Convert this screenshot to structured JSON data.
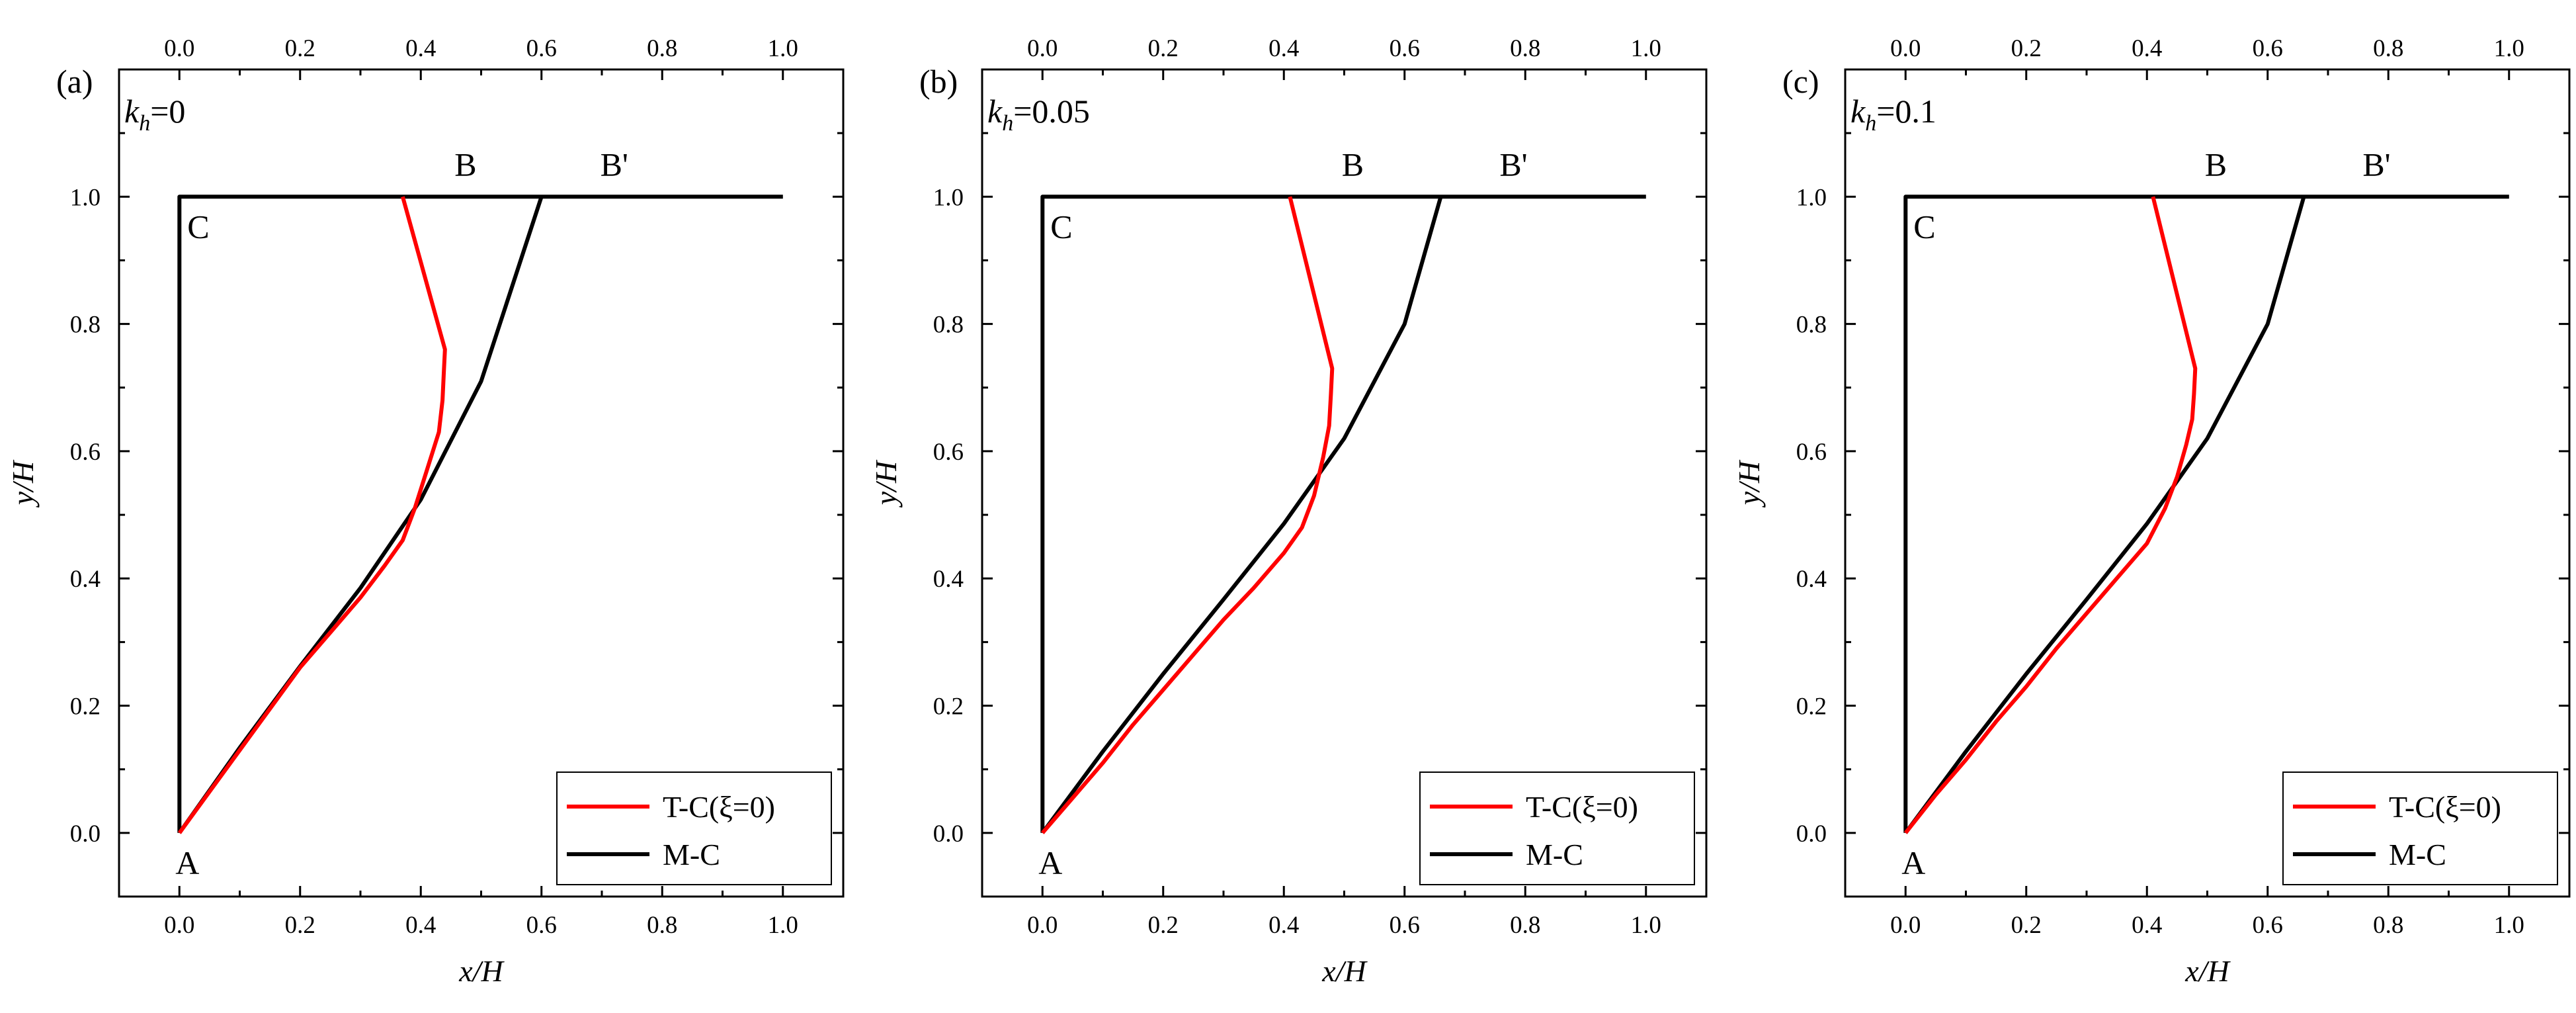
{
  "chart_data": [
    {
      "type": "line",
      "panel_label": "(a)",
      "kh_symbol": "k",
      "kh_subscript": "h",
      "kh_value": "=0",
      "xlabel": "x/H",
      "ylabel": "y/H",
      "xlim": [
        -0.1,
        1.1
      ],
      "ylim": [
        -0.1,
        1.2
      ],
      "xticks": [
        0.0,
        0.2,
        0.4,
        0.6,
        0.8,
        1.0
      ],
      "yticks": [
        0.0,
        0.2,
        0.4,
        0.6,
        0.8,
        1.0
      ],
      "xtick_labels": [
        "0.0",
        "0.2",
        "0.4",
        "0.6",
        "0.8",
        "1.0"
      ],
      "ytick_labels": [
        "0.0",
        "0.2",
        "0.4",
        "0.6",
        "0.8",
        "1.0"
      ],
      "point_labels": [
        {
          "text": "A",
          "x": 0.0,
          "y": 0.0
        },
        {
          "text": "C",
          "x": 0.0,
          "y": 1.0
        },
        {
          "text": "B",
          "x": 0.37,
          "y": 1.0
        },
        {
          "text": "B'",
          "x": 0.6,
          "y": 1.0
        }
      ],
      "legend": [
        "T-C(ξ=0)",
        "M-C"
      ],
      "series": [
        {
          "name": "T-C(ξ=0)",
          "color": "#ff0000",
          "x": [
            0.0,
            0.05,
            0.1,
            0.15,
            0.2,
            0.25,
            0.3,
            0.34,
            0.37,
            0.39,
            0.41,
            0.43,
            0.436,
            0.438,
            0.44,
            0.37
          ],
          "y": [
            0.0,
            0.065,
            0.13,
            0.195,
            0.26,
            0.315,
            0.37,
            0.42,
            0.46,
            0.51,
            0.57,
            0.63,
            0.68,
            0.72,
            0.76,
            1.0
          ]
        },
        {
          "name": "M-C",
          "color": "#000000",
          "x": [
            0.0,
            0.1,
            0.2,
            0.3,
            0.4,
            0.5,
            0.6
          ],
          "y": [
            0.0,
            0.134,
            0.262,
            0.385,
            0.524,
            0.71,
            1.0
          ]
        },
        {
          "name": "boundary",
          "color": "#000000",
          "x": [
            1.0,
            0.0,
            0.0
          ],
          "y": [
            1.0,
            1.0,
            0.0
          ]
        }
      ]
    },
    {
      "type": "line",
      "panel_label": "(b)",
      "kh_symbol": "k",
      "kh_subscript": "h",
      "kh_value": "=0.05",
      "xlabel": "x/H",
      "ylabel": "y/H",
      "xlim": [
        -0.1,
        1.1
      ],
      "ylim": [
        -0.1,
        1.2
      ],
      "xticks": [
        0.0,
        0.2,
        0.4,
        0.6,
        0.8,
        1.0
      ],
      "yticks": [
        0.0,
        0.2,
        0.4,
        0.6,
        0.8,
        1.0
      ],
      "xtick_labels": [
        "0.0",
        "0.2",
        "0.4",
        "0.6",
        "0.8",
        "1.0"
      ],
      "ytick_labels": [
        "0.0",
        "0.2",
        "0.4",
        "0.6",
        "0.8",
        "1.0"
      ],
      "point_labels": [
        {
          "text": "A",
          "x": 0.0,
          "y": 0.0
        },
        {
          "text": "C",
          "x": 0.0,
          "y": 1.0
        },
        {
          "text": "B",
          "x": 0.41,
          "y": 1.0
        },
        {
          "text": "B'",
          "x": 0.66,
          "y": 1.0
        }
      ],
      "legend": [
        "T-C(ξ=0)",
        "M-C"
      ],
      "series": [
        {
          "name": "T-C(ξ=0)",
          "color": "#ff0000",
          "x": [
            0.0,
            0.05,
            0.1,
            0.15,
            0.2,
            0.25,
            0.3,
            0.35,
            0.4,
            0.43,
            0.45,
            0.465,
            0.475,
            0.478,
            0.48,
            0.41
          ],
          "y": [
            0.0,
            0.055,
            0.11,
            0.17,
            0.225,
            0.28,
            0.335,
            0.385,
            0.44,
            0.48,
            0.53,
            0.59,
            0.64,
            0.69,
            0.73,
            1.0
          ]
        },
        {
          "name": "M-C",
          "color": "#000000",
          "x": [
            0.0,
            0.1,
            0.2,
            0.3,
            0.4,
            0.5,
            0.6,
            0.66
          ],
          "y": [
            0.0,
            0.128,
            0.25,
            0.367,
            0.486,
            0.62,
            0.8,
            1.0
          ]
        },
        {
          "name": "boundary",
          "color": "#000000",
          "x": [
            1.0,
            0.0,
            0.0
          ],
          "y": [
            1.0,
            1.0,
            0.0
          ]
        }
      ]
    },
    {
      "type": "line",
      "panel_label": "(c)",
      "kh_symbol": "k",
      "kh_subscript": "h",
      "kh_value": "=0.1",
      "xlabel": "x/H",
      "ylabel": "y/H",
      "xlim": [
        -0.1,
        1.1
      ],
      "ylim": [
        -0.1,
        1.2
      ],
      "xticks": [
        0.0,
        0.2,
        0.4,
        0.6,
        0.8,
        1.0
      ],
      "yticks": [
        0.0,
        0.2,
        0.4,
        0.6,
        0.8,
        1.0
      ],
      "xtick_labels": [
        "0.0",
        "0.2",
        "0.4",
        "0.6",
        "0.8",
        "1.0"
      ],
      "ytick_labels": [
        "0.0",
        "0.2",
        "0.4",
        "0.6",
        "0.8",
        "1.0"
      ],
      "point_labels": [
        {
          "text": "A",
          "x": 0.0,
          "y": 0.0
        },
        {
          "text": "C",
          "x": 0.0,
          "y": 1.0
        },
        {
          "text": "B",
          "x": 0.41,
          "y": 1.0
        },
        {
          "text": "B'",
          "x": 0.66,
          "y": 1.0
        }
      ],
      "legend": [
        "T-C(ξ=0)",
        "M-C"
      ],
      "series": [
        {
          "name": "T-C(ξ=0)",
          "color": "#ff0000",
          "x": [
            0.0,
            0.05,
            0.1,
            0.15,
            0.2,
            0.25,
            0.3,
            0.35,
            0.4,
            0.43,
            0.45,
            0.465,
            0.475,
            0.478,
            0.48,
            0.41
          ],
          "y": [
            0.0,
            0.06,
            0.115,
            0.175,
            0.23,
            0.29,
            0.345,
            0.4,
            0.455,
            0.51,
            0.56,
            0.61,
            0.65,
            0.69,
            0.73,
            1.0
          ]
        },
        {
          "name": "M-C",
          "color": "#000000",
          "x": [
            0.0,
            0.1,
            0.2,
            0.3,
            0.4,
            0.5,
            0.6,
            0.66
          ],
          "y": [
            0.0,
            0.128,
            0.25,
            0.367,
            0.486,
            0.62,
            0.8,
            1.0
          ]
        },
        {
          "name": "boundary",
          "color": "#000000",
          "x": [
            1.0,
            0.0,
            0.0
          ],
          "y": [
            1.0,
            1.0,
            0.0
          ]
        }
      ]
    }
  ]
}
